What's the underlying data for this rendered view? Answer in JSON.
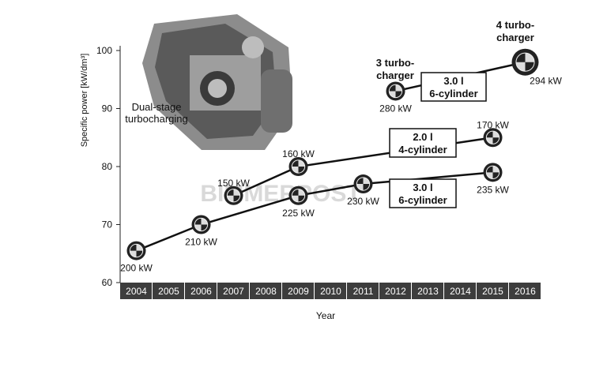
{
  "chart_data": {
    "type": "line",
    "xlabel": "Year",
    "ylabel": "Specific power [kW/dm³]",
    "categories": [
      "2004",
      "2005",
      "2006",
      "2007",
      "2008",
      "2009",
      "2010",
      "2011",
      "2012",
      "2013",
      "2014",
      "2015",
      "2016"
    ],
    "ylim": [
      60,
      100
    ],
    "yticks": [
      60,
      70,
      80,
      90,
      100
    ],
    "grid": false,
    "series": [
      {
        "name": "3.0 l 6-cylinder",
        "points": [
          {
            "x": "2004",
            "y": 65.5,
            "label": "200 kW"
          },
          {
            "x": "2006",
            "y": 70,
            "label": "210 kW"
          },
          {
            "x": "2009",
            "y": 75,
            "label": "225 kW"
          },
          {
            "x": "2011",
            "y": 77,
            "label": "230 kW"
          },
          {
            "x": "2015",
            "y": 79,
            "label": "235 kW"
          }
        ]
      },
      {
        "name": "2.0 l 4-cylinder",
        "points": [
          {
            "x": "2007",
            "y": 75,
            "label": "150 kW"
          },
          {
            "x": "2009",
            "y": 80,
            "label": "160 kW"
          },
          {
            "x": "2015",
            "y": 85,
            "label": "170 kW"
          }
        ]
      },
      {
        "name": "3.0 l 6-cylinder",
        "points": [
          {
            "x": "2012",
            "y": 93,
            "label": "280 kW"
          },
          {
            "x": "2016",
            "y": 98,
            "label": "294 kW"
          }
        ]
      }
    ],
    "annotations": {
      "dual_stage": [
        "Dual-stage",
        "turbocharging"
      ],
      "three_turbo": [
        "3 turbo-",
        "charger"
      ],
      "four_turbo": [
        "4 turbo-",
        "charger"
      ],
      "box_top": [
        "3.0 l",
        "6-cylinder"
      ],
      "box_mid": [
        "2.0 l",
        "4-cylinder"
      ],
      "box_low": [
        "3.0 l",
        "6-cylinder"
      ],
      "watermark": "BIMMERPOST"
    }
  }
}
